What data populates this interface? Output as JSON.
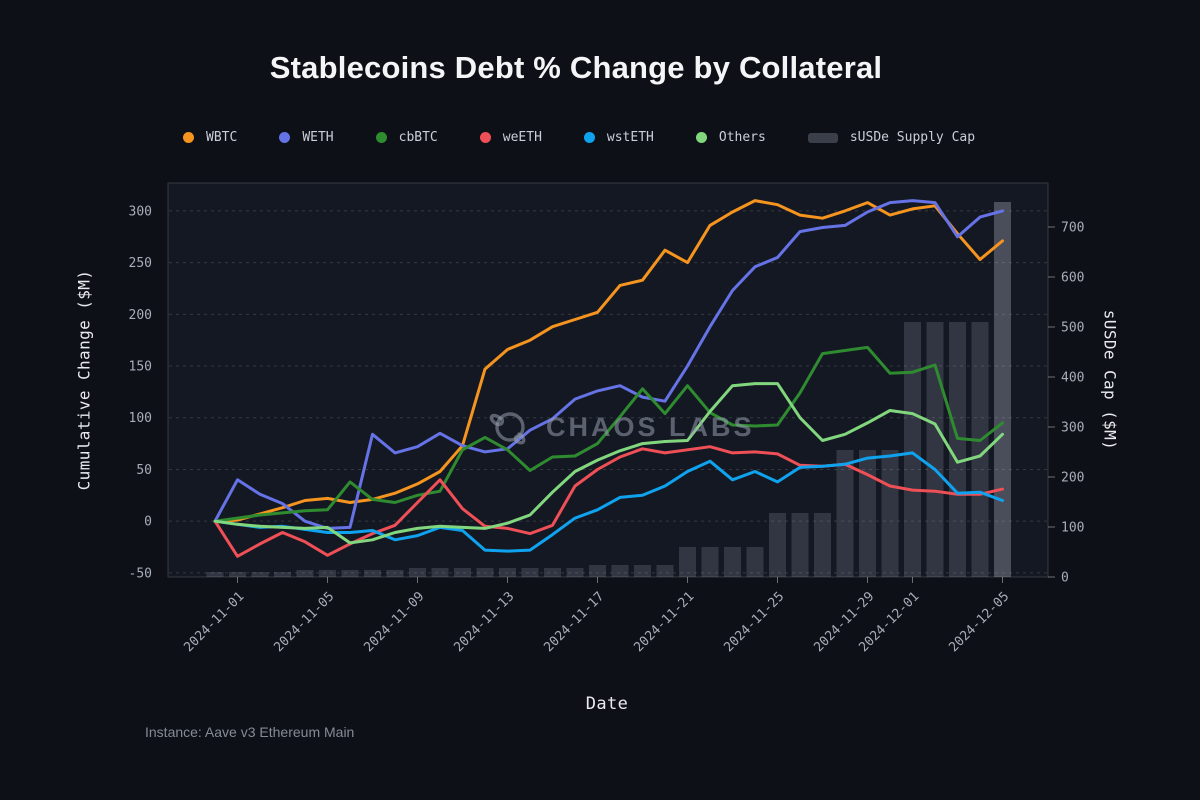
{
  "title": "Stablecoins Debt % Change by Collateral",
  "watermark": "CHAOS LABS",
  "footer": {
    "instance_label": "Instance: Aave v3 Ethereum Main"
  },
  "colors": {
    "background": "#0d1016",
    "plot_background": "#141822",
    "grid": "rgba(255,255,255,0.14)",
    "plot_border": "rgba(255,255,255,0.16)",
    "tick_text": "#a7adb9",
    "bar_fill": "rgba(188,196,214,0.18)",
    "bar_fill_last": "rgba(198,206,222,0.30)",
    "legend_bar_swatch": "#3a3f4a"
  },
  "chart_data": {
    "type": "line+bar",
    "title": "Stablecoins Debt % Change by Collateral",
    "xlabel": "Date",
    "ylabel_left": "Cumulative Change ($M)",
    "ylabel_right": "sUSDe Cap ($M)",
    "legend_position": "top",
    "grid": "horizontal-dashed",
    "ylim_left": [
      -54,
      327
    ],
    "ylim_right": [
      0,
      788
    ],
    "left_ticks": [
      300,
      250,
      200,
      150,
      100,
      50,
      0,
      -50
    ],
    "right_ticks": [
      700,
      600,
      500,
      400,
      300,
      200,
      100,
      0
    ],
    "x_tick_indices": [
      1,
      5,
      9,
      13,
      17,
      21,
      25,
      29,
      31,
      35
    ],
    "x": [
      "2024-10-31",
      "2024-11-01",
      "2024-11-02",
      "2024-11-03",
      "2024-11-04",
      "2024-11-05",
      "2024-11-06",
      "2024-11-07",
      "2024-11-08",
      "2024-11-09",
      "2024-11-10",
      "2024-11-11",
      "2024-11-12",
      "2024-11-13",
      "2024-11-14",
      "2024-11-15",
      "2024-11-16",
      "2024-11-17",
      "2024-11-18",
      "2024-11-19",
      "2024-11-20",
      "2024-11-21",
      "2024-11-22",
      "2024-11-23",
      "2024-11-24",
      "2024-11-25",
      "2024-11-26",
      "2024-11-27",
      "2024-11-28",
      "2024-11-29",
      "2024-11-30",
      "2024-12-01",
      "2024-12-02",
      "2024-12-03",
      "2024-12-04",
      "2024-12-05"
    ],
    "series": [
      {
        "name": "WBTC",
        "color": "#f5941f",
        "values": [
          0,
          1,
          7,
          13,
          20,
          22,
          18,
          21,
          27,
          36,
          48,
          73,
          147,
          166,
          175,
          188,
          195,
          202,
          228,
          233,
          262,
          250,
          286,
          299,
          310,
          306,
          296,
          293,
          300,
          308,
          296,
          302,
          305,
          278,
          253,
          271
        ]
      },
      {
        "name": "WETH",
        "color": "#6673e6",
        "values": [
          0,
          40,
          26,
          17,
          0,
          -7,
          -6,
          84,
          66,
          72,
          85,
          73,
          67,
          70,
          88,
          99,
          118,
          126,
          131,
          120,
          116,
          150,
          188,
          223,
          246,
          255,
          280,
          284,
          286,
          299,
          308,
          310,
          308,
          275,
          294,
          300
        ]
      },
      {
        "name": "cbBTC",
        "color": "#2e8b30",
        "values": [
          0,
          3,
          6,
          8,
          10,
          11,
          38,
          21,
          18,
          25,
          29,
          69,
          81,
          69,
          49,
          62,
          63,
          75,
          101,
          128,
          104,
          131,
          105,
          93,
          92,
          93,
          124,
          162,
          165,
          168,
          143,
          144,
          151,
          80,
          78,
          95
        ]
      },
      {
        "name": "weETH",
        "color": "#ef4f56",
        "values": [
          0,
          -34,
          -22,
          -11,
          -20,
          -33,
          -22,
          -12,
          -4,
          18,
          40,
          12,
          -5,
          -7,
          -12,
          -4,
          34,
          50,
          62,
          70,
          66,
          69,
          72,
          66,
          67,
          65,
          54,
          53,
          55,
          45,
          34,
          30,
          29,
          26,
          26,
          31
        ]
      },
      {
        "name": "wstETH",
        "color": "#0fa3ef",
        "values": [
          0,
          -3,
          -6,
          -5,
          -8,
          -11,
          -11,
          -9,
          -18,
          -14,
          -6,
          -9,
          -28,
          -29,
          -28,
          -13,
          3,
          11,
          23,
          25,
          34,
          48,
          58,
          40,
          48,
          38,
          52,
          53,
          55,
          61,
          63,
          66,
          50,
          27,
          28,
          20
        ]
      },
      {
        "name": "Others",
        "color": "#82d77e",
        "values": [
          0,
          -3,
          -5,
          -6,
          -7,
          -6,
          -21,
          -18,
          -11,
          -7,
          -5,
          -6,
          -7,
          -2,
          6,
          28,
          48,
          59,
          68,
          75,
          77,
          78,
          106,
          131,
          133,
          133,
          100,
          78,
          84,
          95,
          107,
          104,
          94,
          57,
          63,
          84
        ]
      }
    ],
    "bars": {
      "name": "sUSDe Supply Cap",
      "axis": "right",
      "values": [
        10,
        10,
        10,
        10,
        14,
        14,
        14,
        14,
        14,
        18,
        18,
        18,
        18,
        18,
        18,
        18,
        18,
        24,
        24,
        24,
        24,
        60,
        60,
        60,
        60,
        128,
        128,
        128,
        254,
        254,
        254,
        510,
        510,
        510,
        510,
        750
      ]
    }
  }
}
